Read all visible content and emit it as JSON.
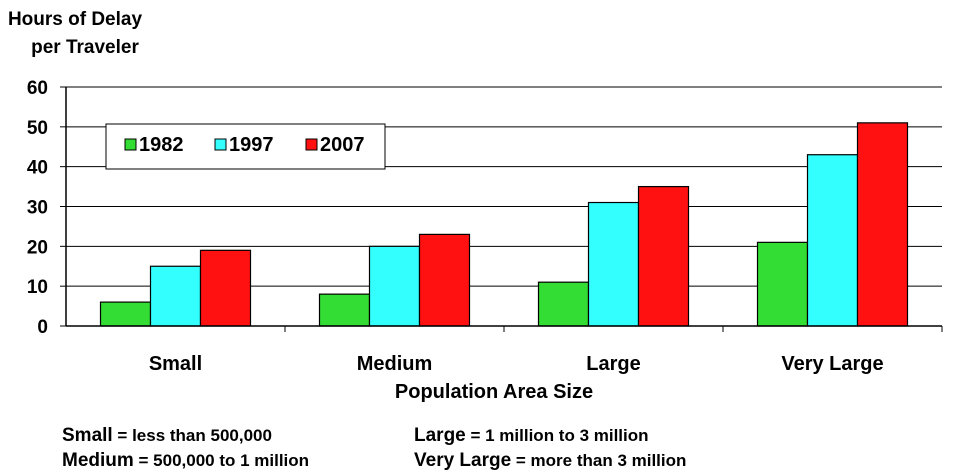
{
  "chart_data": {
    "type": "bar",
    "ylabel_lines": [
      "Hours of Delay",
      "per Traveler"
    ],
    "xlabel": "Population Area Size",
    "categories": [
      "Small",
      "Medium",
      "Large",
      "Very Large"
    ],
    "series": [
      {
        "name": "1982",
        "values": [
          6,
          8,
          11,
          21
        ],
        "color": "#33dd33"
      },
      {
        "name": "1997",
        "values": [
          15,
          20,
          31,
          43
        ],
        "color": "#33ffff"
      },
      {
        "name": "2007",
        "values": [
          19,
          23,
          35,
          51
        ],
        "color": "#ff1111"
      }
    ],
    "ylim": [
      0,
      60
    ],
    "yticks": [
      0,
      10,
      20,
      30,
      40,
      50,
      60
    ],
    "grid": true,
    "legend_position": "top-left"
  },
  "notes": [
    {
      "key": "Small",
      "text": " = less than 500,000"
    },
    {
      "key": "Medium",
      "text": " = 500,000 to 1 million"
    },
    {
      "key": "Large",
      "text": " = 1 million to 3 million"
    },
    {
      "key": "Very Large",
      "text": " = more than 3 million"
    }
  ]
}
